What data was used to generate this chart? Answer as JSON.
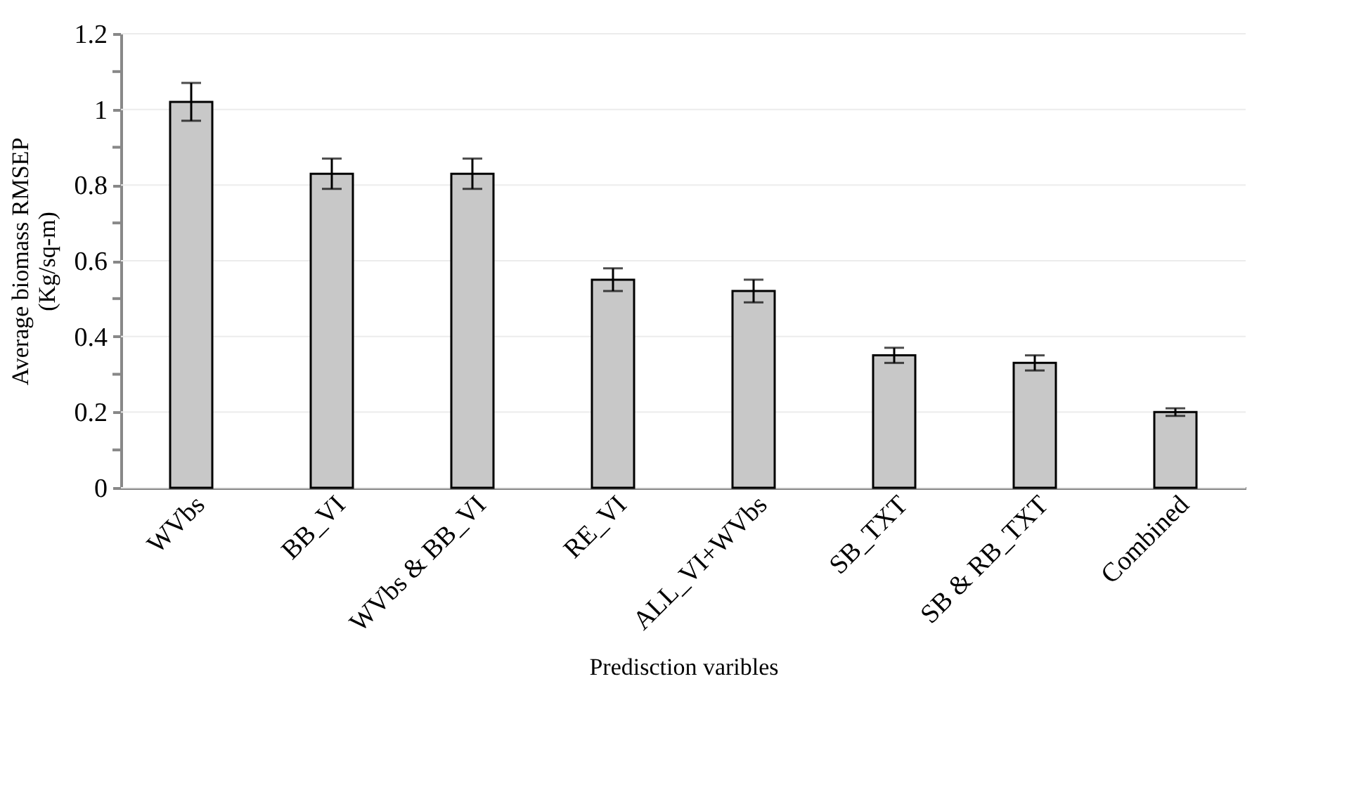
{
  "chart_data": {
    "type": "bar",
    "xlabel": "Predisction varibles",
    "ylabel": "Average biomass RMSEP (Kg/sq-m)",
    "categories": [
      "WVbs",
      "BB_VI",
      "WVbs & BB_VI",
      "RE_VI",
      "ALL_VI+WVbs",
      "SB_TXT",
      "SB & RB_TXT",
      "Combined"
    ],
    "values": [
      1.02,
      0.83,
      0.83,
      0.55,
      0.52,
      0.35,
      0.33,
      0.2
    ],
    "errors": [
      0.05,
      0.04,
      0.04,
      0.03,
      0.03,
      0.02,
      0.02,
      0.01
    ],
    "color": "#c8c8c8",
    "ylim": [
      0,
      1.2
    ],
    "yticks": [
      0,
      {
        "value": 0.1,
        "label": null
      },
      0.2,
      {
        "value": 0.3,
        "label": null
      },
      0.4,
      {
        "value": 0.5,
        "label": null
      },
      0.6,
      {
        "value": 0.7,
        "label": null
      },
      0.8,
      {
        "value": 0.9,
        "label": null
      },
      1,
      {
        "value": 1.1,
        "label": null
      },
      {
        "value": 1.2,
        "label": "1.2"
      }
    ],
    "grid": "y"
  }
}
